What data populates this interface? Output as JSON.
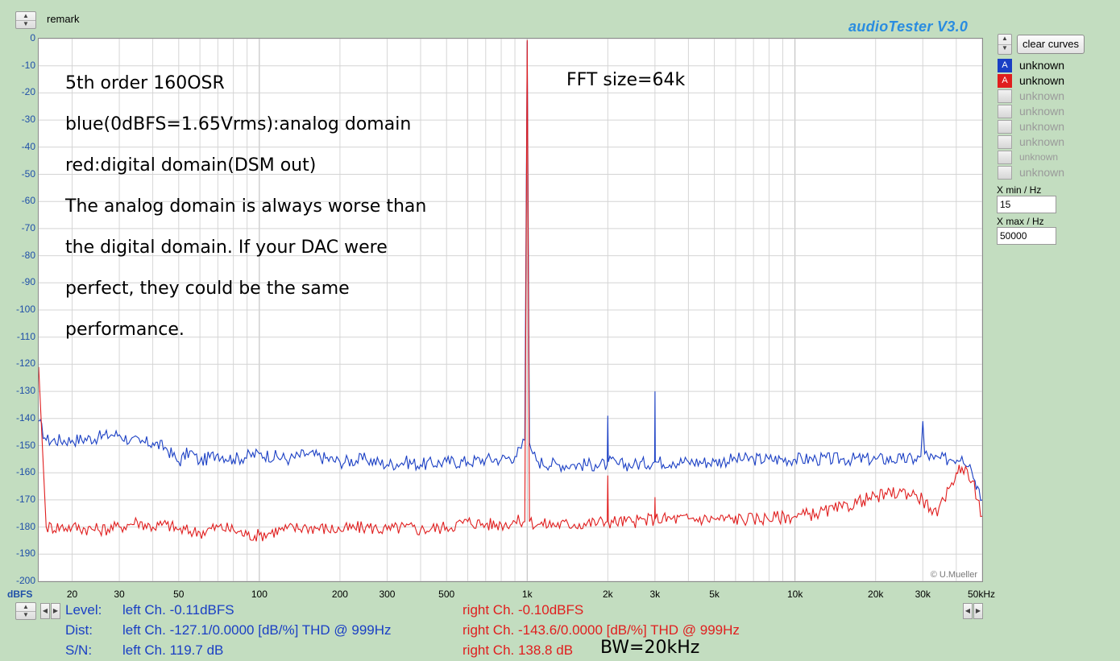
{
  "header": {
    "remark_label": "remark",
    "app_title": "audioTester  V3.0",
    "clear_curves_label": "clear curves"
  },
  "curves": [
    {
      "label": "unknown",
      "badge": "A",
      "color": "#1a3fc4",
      "active": true
    },
    {
      "label": "unknown",
      "badge": "A",
      "color": "#e01e1e",
      "active": true
    },
    {
      "label": "unknown",
      "badge": "",
      "color": "",
      "active": false
    },
    {
      "label": "unknown",
      "badge": "",
      "color": "",
      "active": false
    },
    {
      "label": "unknown",
      "badge": "",
      "color": "",
      "active": false
    },
    {
      "label": "unknown",
      "badge": "",
      "color": "",
      "active": false
    },
    {
      "label": "unknown",
      "badge": "",
      "color": "",
      "active": false
    },
    {
      "label": "unknown",
      "badge": "",
      "color": "",
      "active": false
    }
  ],
  "xrange": {
    "xmin_label": "X min / Hz",
    "xmin_value": "15",
    "xmax_label": "X max / Hz",
    "xmax_value": "50000"
  },
  "annotations": {
    "lines": [
      "5th order 160OSR",
      "blue(0dBFS=1.65Vrms):analog domain",
      "red:digital domain(DSM out)",
      "The analog domain is always worse than",
      "the digital domain. If your DAC were",
      "perfect, they could be the same",
      "performance."
    ],
    "fft_size": "FFT size=64k",
    "copyright": "© U.Mueller"
  },
  "stats": {
    "level_label": "Level:",
    "dist_label": "Dist:",
    "sn_label": "S/N:",
    "left_level": "left Ch. -0.11dBFS",
    "right_level": "right Ch. -0.10dBFS",
    "left_dist": "left Ch. -127.1/0.0000 [dB/%] THD @ 999Hz",
    "right_dist": "right Ch. -143.6/0.0000 [dB/%] THD @ 999Hz",
    "left_sn": "left Ch. 119.7 dB",
    "right_sn": "right Ch. 138.8 dB",
    "bw": "BW=20kHz"
  },
  "chart_data": {
    "type": "line",
    "title": "",
    "xlabel": "",
    "ylabel": "dBFS",
    "x_scale": "log",
    "xlim": [
      15,
      50000
    ],
    "ylim": [
      -200,
      0
    ],
    "grid": true,
    "y_ticks": [
      0,
      -10,
      -20,
      -30,
      -40,
      -50,
      -60,
      -70,
      -80,
      -90,
      -100,
      -110,
      -120,
      -130,
      -140,
      -150,
      -160,
      -170,
      -180,
      -190,
      -200
    ],
    "x_ticks": [
      {
        "value": 20,
        "label": "20"
      },
      {
        "value": 30,
        "label": "30"
      },
      {
        "value": 50,
        "label": "50"
      },
      {
        "value": 100,
        "label": "100"
      },
      {
        "value": 200,
        "label": "200"
      },
      {
        "value": 300,
        "label": "300"
      },
      {
        "value": 500,
        "label": "500"
      },
      {
        "value": 1000,
        "label": "1k"
      },
      {
        "value": 2000,
        "label": "2k"
      },
      {
        "value": 3000,
        "label": "3k"
      },
      {
        "value": 5000,
        "label": "5k"
      },
      {
        "value": 10000,
        "label": "10k"
      },
      {
        "value": 20000,
        "label": "20k"
      },
      {
        "value": 30000,
        "label": "30k"
      },
      {
        "value": 50000,
        "label": "50kHz"
      }
    ],
    "series": [
      {
        "color": "#1a3fc4",
        "points": [
          [
            15,
            -141
          ],
          [
            16,
            -148
          ],
          [
            20,
            -148
          ],
          [
            25,
            -147
          ],
          [
            28,
            -146
          ],
          [
            30,
            -146
          ],
          [
            33,
            -148
          ],
          [
            36,
            -149
          ],
          [
            40,
            -149
          ],
          [
            45,
            -151
          ],
          [
            50,
            -156
          ],
          [
            55,
            -152
          ],
          [
            60,
            -156
          ],
          [
            70,
            -153
          ],
          [
            80,
            -155
          ],
          [
            100,
            -153
          ],
          [
            130,
            -155
          ],
          [
            150,
            -153
          ],
          [
            200,
            -156
          ],
          [
            250,
            -155
          ],
          [
            300,
            -157
          ],
          [
            350,
            -156
          ],
          [
            400,
            -157
          ],
          [
            500,
            -156
          ],
          [
            600,
            -156
          ],
          [
            700,
            -155
          ],
          [
            800,
            -155
          ],
          [
            900,
            -154
          ],
          [
            950,
            -151
          ],
          [
            980,
            -148
          ],
          [
            1000,
            -1
          ],
          [
            1020,
            -149
          ],
          [
            1050,
            -153
          ],
          [
            1100,
            -156
          ],
          [
            1300,
            -157
          ],
          [
            1500,
            -157
          ],
          [
            1800,
            -157
          ],
          [
            1990,
            -157
          ],
          [
            2000,
            -139
          ],
          [
            2010,
            -156
          ],
          [
            2200,
            -157
          ],
          [
            2500,
            -157
          ],
          [
            2990,
            -156
          ],
          [
            3000,
            -130
          ],
          [
            3010,
            -156
          ],
          [
            3500,
            -156
          ],
          [
            4000,
            -156
          ],
          [
            5000,
            -156
          ],
          [
            6000,
            -155
          ],
          [
            7000,
            -155
          ],
          [
            8000,
            -155
          ],
          [
            10000,
            -155
          ],
          [
            12000,
            -155
          ],
          [
            15000,
            -155
          ],
          [
            20000,
            -155
          ],
          [
            25000,
            -155
          ],
          [
            28000,
            -155
          ],
          [
            29500,
            -154
          ],
          [
            30000,
            -141
          ],
          [
            30500,
            -153
          ],
          [
            33000,
            -155
          ],
          [
            38000,
            -155
          ],
          [
            42000,
            -154
          ],
          [
            45000,
            -157
          ],
          [
            47000,
            -163
          ],
          [
            48000,
            -165
          ],
          [
            50000,
            -170
          ]
        ]
      },
      {
        "color": "#e01e1e",
        "points": [
          [
            15,
            -121
          ],
          [
            16,
            -180
          ],
          [
            20,
            -180
          ],
          [
            25,
            -181
          ],
          [
            30,
            -180
          ],
          [
            35,
            -178
          ],
          [
            40,
            -180
          ],
          [
            45,
            -179
          ],
          [
            50,
            -181
          ],
          [
            60,
            -182
          ],
          [
            70,
            -180
          ],
          [
            80,
            -181
          ],
          [
            90,
            -183
          ],
          [
            100,
            -183
          ],
          [
            120,
            -181
          ],
          [
            150,
            -180
          ],
          [
            200,
            -181
          ],
          [
            250,
            -180
          ],
          [
            300,
            -181
          ],
          [
            350,
            -180
          ],
          [
            400,
            -181
          ],
          [
            500,
            -180
          ],
          [
            600,
            -178
          ],
          [
            700,
            -179
          ],
          [
            800,
            -179
          ],
          [
            900,
            -178
          ],
          [
            980,
            -178
          ],
          [
            1000,
            -0.5
          ],
          [
            1020,
            -178
          ],
          [
            1100,
            -179
          ],
          [
            1500,
            -179
          ],
          [
            1990,
            -178
          ],
          [
            2000,
            -161
          ],
          [
            2010,
            -178
          ],
          [
            2500,
            -178
          ],
          [
            2990,
            -177
          ],
          [
            3000,
            -169
          ],
          [
            3010,
            -177
          ],
          [
            4000,
            -177
          ],
          [
            5000,
            -177
          ],
          [
            7000,
            -177
          ],
          [
            10000,
            -176
          ],
          [
            12000,
            -175
          ],
          [
            15000,
            -173
          ],
          [
            18000,
            -170
          ],
          [
            20000,
            -169
          ],
          [
            22000,
            -168
          ],
          [
            25000,
            -167
          ],
          [
            28000,
            -168
          ],
          [
            30000,
            -170
          ],
          [
            32000,
            -173
          ],
          [
            34000,
            -176
          ],
          [
            36000,
            -170
          ],
          [
            38000,
            -165
          ],
          [
            40000,
            -160
          ],
          [
            42000,
            -158
          ],
          [
            44000,
            -159
          ],
          [
            46000,
            -163
          ],
          [
            48000,
            -170
          ],
          [
            50000,
            -176
          ]
        ]
      }
    ]
  }
}
